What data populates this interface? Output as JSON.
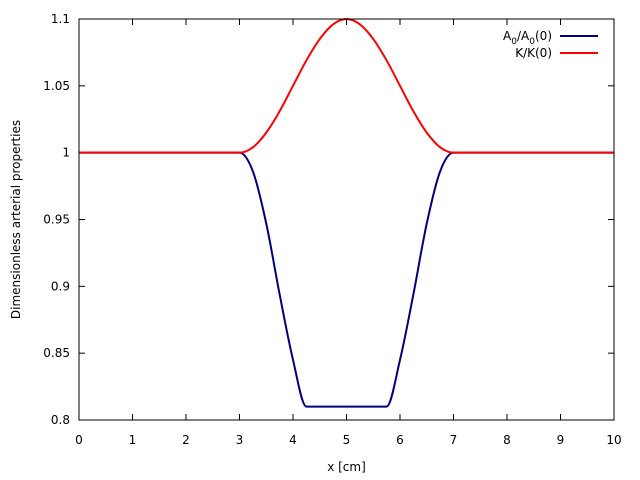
{
  "chart_data": {
    "type": "line",
    "xlabel": "x [cm]",
    "ylabel": "Dimensionless arterial properties",
    "xlim": [
      0,
      10
    ],
    "ylim": [
      0.8,
      1.1
    ],
    "x_ticks": [
      0,
      1,
      2,
      3,
      4,
      5,
      6,
      7,
      8,
      9,
      10
    ],
    "y_ticks": [
      0.8,
      0.85,
      0.9,
      0.95,
      1,
      1.05,
      1.1
    ],
    "x_tick_labels": [
      "0",
      "1",
      "2",
      "3",
      "4",
      "5",
      "6",
      "7",
      "8",
      "9",
      "10"
    ],
    "y_tick_labels": [
      "0.8",
      "0.85",
      "0.9",
      "0.95",
      "1",
      "1.05",
      "1.1"
    ],
    "grid": false,
    "legend_position": "top-right",
    "series": [
      {
        "name": "A0/A0(0)",
        "name_base": "A",
        "name_sub": "0",
        "name_mid": "/A",
        "name_sub2": "0",
        "name_tail": "(0)",
        "color": "#000080",
        "x": [
          0,
          1,
          2,
          3,
          3.25,
          3.5,
          3.75,
          4,
          4.25,
          4.5,
          4.75,
          5,
          5.25,
          5.5,
          5.75,
          6,
          6.25,
          6.5,
          6.75,
          7,
          8,
          9,
          10
        ],
        "y": [
          1,
          1,
          1,
          1,
          0.986,
          0.947,
          0.894,
          0.845,
          0.81,
          0.81,
          0.81,
          0.81,
          0.81,
          0.81,
          0.81,
          0.845,
          0.894,
          0.947,
          0.986,
          1,
          1,
          1,
          1
        ]
      },
      {
        "name": "K/K(0)",
        "color": "#ff0000",
        "x": [
          0,
          1,
          2,
          3,
          3.25,
          3.5,
          3.75,
          4,
          4.25,
          4.5,
          4.75,
          5,
          5.25,
          5.5,
          5.75,
          6,
          6.25,
          6.5,
          6.75,
          7,
          8,
          9,
          10
        ],
        "y": [
          1,
          1,
          1,
          1,
          1.004,
          1.015,
          1.031,
          1.05,
          1.069,
          1.085,
          1.096,
          1.1,
          1.096,
          1.085,
          1.069,
          1.05,
          1.031,
          1.015,
          1.004,
          1,
          1,
          1,
          1
        ]
      }
    ]
  }
}
